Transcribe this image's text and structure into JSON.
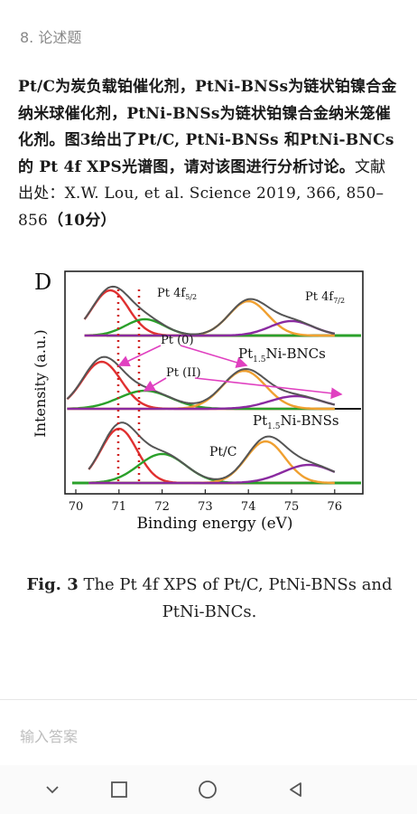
{
  "question": {
    "number": "8. 论述题",
    "body_part1": "Pt/C为炭负载铂催化剂，PtNi-BNSs为链状铂镍合金纳米球催化剂，PtNi-BNSs为链状铂镍合金纳米笼催化剂。图3给出了Pt/C, PtNi-BNSs 和PtNi-BNCs的 Pt 4f XPS光谱图，请对该图进行分析讨论。",
    "body_part2": "文献出处：X.W. Lou, et al. Science 2019, 366, 850–856",
    "score": "（10分）"
  },
  "figure": {
    "panel_letter": "D",
    "y_axis_label": "Intensity (a.u.)",
    "x_axis_label": "Binding energy (eV)",
    "x_ticks": [
      "70",
      "71",
      "72",
      "73",
      "74",
      "75",
      "76"
    ],
    "labels": {
      "pt4f52": "Pt 4f",
      "pt4f52_sub": "5/2",
      "pt4f72": "Pt 4f",
      "pt4f72_sub": "7/2",
      "pt0": "Pt (0)",
      "pt2": "Pt (II)",
      "bncs": "Pt",
      "bncs_sub": "1.5",
      "bncs_rest": "Ni-BNCs",
      "bnss": "Pt",
      "bnss_sub": "1.5",
      "bnss_rest": "Ni-BNSs",
      "ptc": "Pt/C"
    },
    "colors": {
      "pt0": "#e03030",
      "pt2": "#2aa02a",
      "pt0_high": "#f0a030",
      "pt2_high": "#8a2aa0",
      "envelope": "#555555",
      "arrows": "#e040c0",
      "dotted": "#d02020"
    },
    "chart_data": {
      "type": "line",
      "xlabel": "Binding energy (eV)",
      "ylabel": "Intensity (a.u.)",
      "xlim": [
        69.5,
        76
      ],
      "series": [
        {
          "name": "Pt 4f (top)",
          "x": [
            70.5,
            71.6,
            74.0,
            75.1
          ]
        },
        {
          "name": "Pt1.5Ni-BNCs",
          "x": [
            70.5,
            71.6,
            74.0,
            75.1
          ]
        },
        {
          "name": "Pt/C",
          "x": [
            71.0,
            72.0,
            74.4,
            75.4
          ]
        }
      ]
    }
  },
  "caption": {
    "label": "Fig. 3",
    "text": " The Pt 4f XPS of Pt/C, PtNi-BNSs and PtNi-BNCs."
  },
  "answer": {
    "placeholder": "输入答案"
  },
  "navbar": {
    "back": "chevron-down-icon",
    "recents": "square-icon",
    "home": "circle-icon",
    "nav_back": "triangle-back-icon"
  }
}
